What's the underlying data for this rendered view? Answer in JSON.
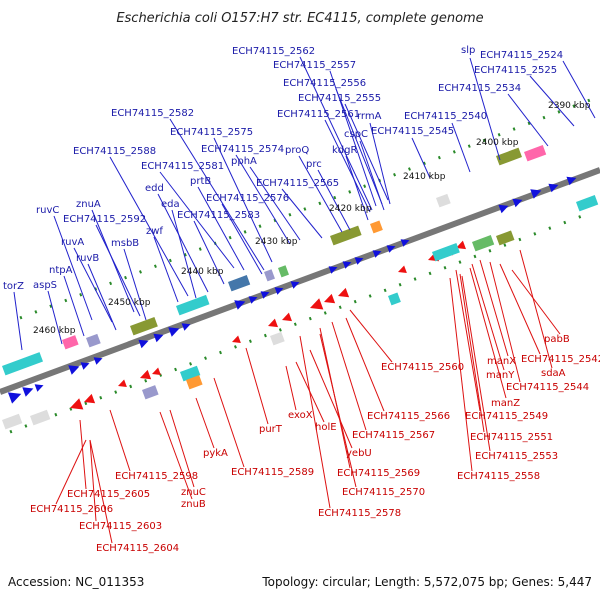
{
  "title": "Escherichia coli O157:H7 str. EC4115, complete genome",
  "footer": {
    "accession": "Accession: NC_011353",
    "summary": "Topology: circular; Length: 5,572,075 bp; Genes: 5,447"
  },
  "kbp_labels": [
    "2390 kbp",
    "2400 kbp",
    "2410 kbp",
    "2420 kbp",
    "2430 kbp",
    "2440 kbp",
    "2450 kbp",
    "2460 kbp"
  ],
  "upper_gene_labels": [
    "slp",
    "ECH74115_2524",
    "ECH74115_2525",
    "ECH74115_2534",
    "ECH74115_2540",
    "ECH74115_2545",
    "ECH74115_2555",
    "ECH74115_2556",
    "ECH74115_2557",
    "ECH74115_2562",
    "ECH74115_2561",
    "cspC",
    "rrmA",
    "kdgR",
    "prc",
    "proQ",
    "ECH74115_2565",
    "pphA",
    "ECH74115_2574",
    "ECH74115_2575",
    "ECH74115_2581",
    "ECH74115_2582",
    "prtB",
    "ECH74115_2576",
    "ECH74115_2588",
    "edd",
    "eda",
    "ECH74115_2583",
    "zwf",
    "ruvC",
    "znuA",
    "ECH74115_2592",
    "msbB",
    "ruvA",
    "ruvB",
    "ntpA",
    "aspS",
    "torZ"
  ],
  "lower_gene_labels": [
    "pabB",
    "ECH74115_2542",
    "manX",
    "sdaA",
    "manY",
    "ECH74115_2544",
    "manZ",
    "ECH74115_2549",
    "ECH74115_2551",
    "ECH74115_2553",
    "ECH74115_2558",
    "ECH74115_2560",
    "ECH74115_2566",
    "ECH74115_2567",
    "ECH74115_2569",
    "ECH74115_2570",
    "ECH74115_2578",
    "exoX",
    "holE",
    "yebU",
    "purT",
    "ECH74115_2589",
    "pykA",
    "znuC",
    "znuB",
    "ECH74115_2598",
    "ECH74115_2605",
    "ECH74115_2606",
    "ECH74115_2603",
    "ECH74115_2604"
  ],
  "colors": {
    "upper_label": "#1a1aa8",
    "lower_label": "#c80000",
    "forward_gene": "#1010dd",
    "reverse_gene": "#ee1111",
    "backbone": "#777777"
  }
}
